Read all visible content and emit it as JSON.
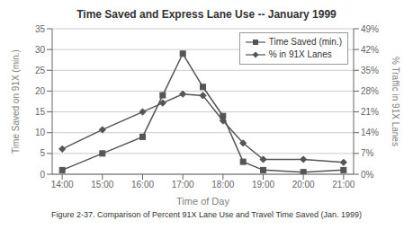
{
  "chart_data": {
    "type": "line",
    "title": "Time Saved and Express Lane Use -- January 1999",
    "x_label": "Time of Day",
    "y_label": "Time Saved on 91X (min.)",
    "y2_label": "% Traffic in 91X Lanes",
    "caption": "Figure 2-37. Comparison of Percent 91X Lane Use and Travel Time Saved (Jan. 1999)",
    "x": [
      14.0,
      15.0,
      16.0,
      16.5,
      17.0,
      17.5,
      18.0,
      18.5,
      19.0,
      20.0,
      21.0
    ],
    "series": [
      {
        "name": "Time Saved (min.)",
        "color": "#555555",
        "marker": "square",
        "values": [
          1,
          5,
          9,
          19,
          29,
          21,
          14,
          3,
          1,
          0.5,
          1
        ]
      },
      {
        "name": "% in 91X Lanes",
        "color": "#555555",
        "marker": "diamond",
        "axis": "y2",
        "values": [
          8.5,
          15,
          21,
          24,
          27,
          26.5,
          18,
          10.5,
          5,
          5,
          4
        ]
      }
    ],
    "xlim": [
      13.75,
      21.25
    ],
    "xticks": [
      {
        "value": 14.0,
        "label": "14:00"
      },
      {
        "value": 15.0,
        "label": "15:00"
      },
      {
        "value": 16.0,
        "label": "16:00"
      },
      {
        "value": 17.0,
        "label": "17:00"
      },
      {
        "value": 18.0,
        "label": "18:00"
      },
      {
        "value": 19.0,
        "label": "19:00"
      },
      {
        "value": 20.0,
        "label": "20:00"
      },
      {
        "value": 21.0,
        "label": "21:00"
      }
    ],
    "ylim": [
      0,
      35
    ],
    "yticks": [
      0,
      5,
      10,
      15,
      20,
      25,
      30,
      35
    ],
    "y2lim": [
      0,
      49
    ],
    "y2ticks": [
      {
        "value": 0,
        "label": "0%"
      },
      {
        "value": 7,
        "label": "7%"
      },
      {
        "value": 14,
        "label": "14%"
      },
      {
        "value": 21,
        "label": "21%"
      },
      {
        "value": 28,
        "label": "28%"
      },
      {
        "value": 35,
        "label": "35%"
      },
      {
        "value": 42,
        "label": "42%"
      },
      {
        "value": 49,
        "label": "49%"
      }
    ],
    "grid": true,
    "legend": "upper right"
  }
}
